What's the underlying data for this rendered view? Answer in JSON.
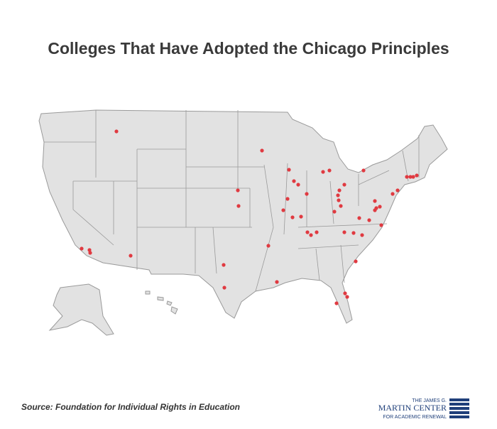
{
  "title": "Colleges That Have Adopted the Chicago Principles",
  "source": "Source: Foundation for Individual Rights in Education",
  "logo": {
    "line1": "THE JAMES G.",
    "line2": "MARTIN CENTER",
    "line3": "FOR ACADEMIC RENEWAL"
  }
}
